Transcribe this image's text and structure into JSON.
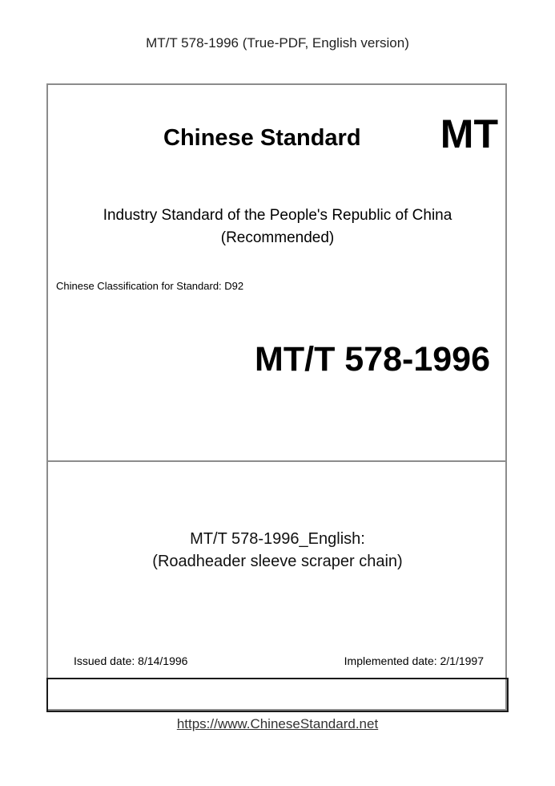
{
  "header": {
    "title": "MT/T 578-1996 (True-PDF, English version)"
  },
  "cover": {
    "heading": "Chinese Standard",
    "code_mark": "MT",
    "subtitle_line1": "Industry Standard of the People's Republic of China",
    "subtitle_line2": "(Recommended)",
    "classification": "Chinese Classification for Standard: D92",
    "standard_number": "MT/T 578-1996",
    "english_title_line1": "MT/T 578-1996_English:",
    "english_title_line2": "(Roadheader sleeve scraper chain)",
    "issued_date": "Issued date: 8/14/1996",
    "implemented_date": "Implemented date: 2/1/1997"
  },
  "footer": {
    "link": "https://www.ChineseStandard.net"
  }
}
